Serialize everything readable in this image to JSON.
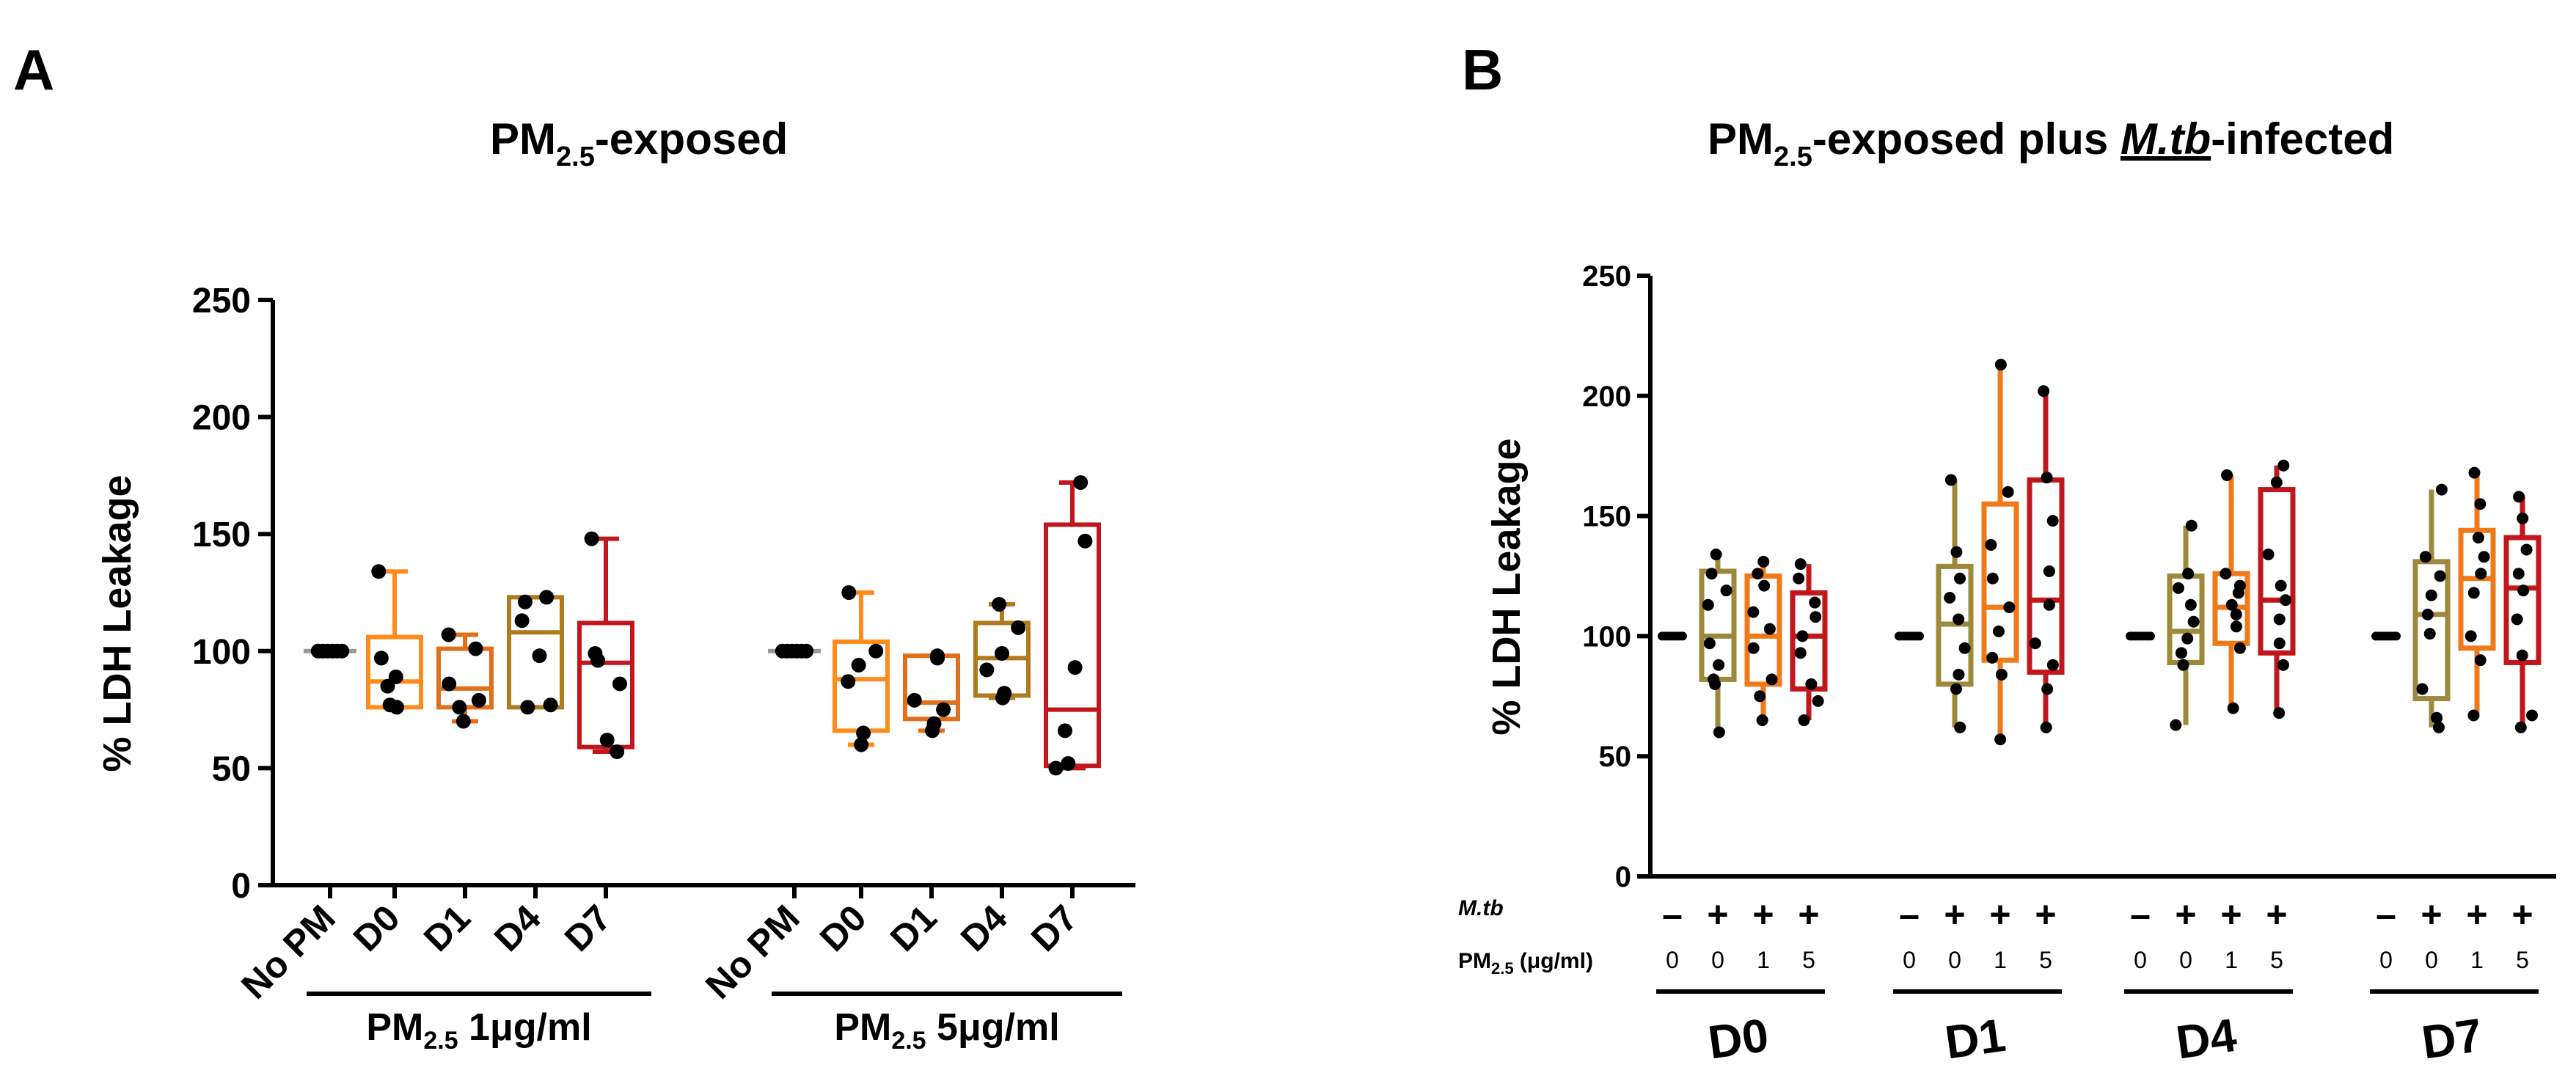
{
  "colors": {
    "nopm": "#999999",
    "d0": "#FF8C1A",
    "d1": "#E0701C",
    "d4": "#B07A1E",
    "d7": "#C2161C",
    "olive": "#9C8A3A",
    "orange": "#F07A1A",
    "red": "#C2161C",
    "black": "#000000"
  },
  "chart_data": [
    {
      "panel": "A",
      "type": "box",
      "title_main": "PM",
      "title_sub": "2.5",
      "title_rest": "-exposed",
      "ylabel": "% LDH Leakage",
      "ylim": [
        0,
        250
      ],
      "yticks": [
        "0",
        "50",
        "100",
        "150",
        "200",
        "250"
      ],
      "groups": [
        {
          "label_main": "PM",
          "label_sub": "2.5",
          "label_rest": " 1μg/ml"
        },
        {
          "label_main": "PM",
          "label_sub": "2.5",
          "label_rest": " 5μg/ml"
        }
      ],
      "categories": [
        "No PM",
        "D0",
        "D1",
        "D4",
        "D7",
        "No PM",
        "D0",
        "D1",
        "D4",
        "D7"
      ],
      "series": [
        {
          "name": "No PM",
          "group": 0,
          "color": "nopm",
          "min": 100,
          "q1": 100,
          "median": 100,
          "q3": 100,
          "max": 100,
          "points": [
            100,
            100,
            100,
            100,
            100,
            100
          ]
        },
        {
          "name": "D0",
          "group": 0,
          "color": "d0",
          "min": 76,
          "q1": 76,
          "median": 87,
          "q3": 106,
          "max": 134,
          "points": [
            76,
            77,
            85,
            89,
            97,
            134
          ]
        },
        {
          "name": "D1",
          "group": 0,
          "color": "d1",
          "min": 70,
          "q1": 76,
          "median": 84,
          "q3": 101,
          "max": 107,
          "points": [
            70,
            76,
            79,
            86,
            101,
            107
          ]
        },
        {
          "name": "D4",
          "group": 0,
          "color": "d4",
          "min": 76,
          "q1": 76,
          "median": 108,
          "q3": 123,
          "max": 123,
          "points": [
            76,
            77,
            98,
            113,
            121,
            123
          ]
        },
        {
          "name": "D7",
          "group": 0,
          "color": "d7",
          "min": 57,
          "q1": 59,
          "median": 95,
          "q3": 112,
          "max": 148,
          "points": [
            57,
            62,
            86,
            96,
            99,
            148
          ]
        },
        {
          "name": "No PM",
          "group": 1,
          "color": "nopm",
          "min": 100,
          "q1": 100,
          "median": 100,
          "q3": 100,
          "max": 100,
          "points": [
            100,
            100,
            100,
            100,
            100,
            100
          ]
        },
        {
          "name": "D0",
          "group": 1,
          "color": "d0",
          "min": 60,
          "q1": 66,
          "median": 88,
          "q3": 104,
          "max": 125,
          "points": [
            60,
            65,
            87,
            94,
            100,
            125
          ]
        },
        {
          "name": "D1",
          "group": 1,
          "color": "d1",
          "min": 66,
          "q1": 71,
          "median": 78,
          "q3": 98,
          "max": 98,
          "points": [
            66,
            69,
            75,
            79,
            97,
            98
          ]
        },
        {
          "name": "D4",
          "group": 1,
          "color": "d4",
          "min": 80,
          "q1": 81,
          "median": 97,
          "q3": 112,
          "max": 120,
          "points": [
            80,
            82,
            92,
            99,
            110,
            120
          ]
        },
        {
          "name": "D7",
          "group": 1,
          "color": "d7",
          "min": 50,
          "q1": 51,
          "median": 75,
          "q3": 154,
          "max": 172,
          "points": [
            50,
            52,
            66,
            93,
            147,
            172
          ]
        }
      ]
    },
    {
      "panel": "B",
      "type": "box",
      "title_main": "PM",
      "title_sub": "2.5",
      "title_mid": "-exposed plus ",
      "title_italic": "M.tb",
      "title_rest": "-infected",
      "ylabel": "% LDH Leakage",
      "ylim": [
        0,
        250
      ],
      "yticks": [
        "0",
        "50",
        "100",
        "150",
        "200",
        "250"
      ],
      "row_mtb": "M.tb",
      "row_pm_main": "PM",
      "row_pm_sub": "2.5",
      "row_pm_rest": " (μg/ml)",
      "days": [
        "D0",
        "D1",
        "D4",
        "D7"
      ],
      "mtb_signs": [
        "–",
        "+",
        "+",
        "+"
      ],
      "pm_values": [
        "0",
        "0",
        "1",
        "5"
      ],
      "series": [
        {
          "day": "D0",
          "color": "black",
          "min": 100,
          "q1": 100,
          "median": 100,
          "q3": 100,
          "max": 100,
          "points": [
            100,
            100,
            100,
            100,
            100,
            100,
            100,
            100,
            100
          ],
          "control": true
        },
        {
          "day": "D0",
          "color": "olive",
          "min": 60,
          "q1": 82,
          "median": 100,
          "q3": 127,
          "max": 134,
          "points": [
            60,
            80,
            82,
            88,
            97,
            113,
            119,
            126,
            134
          ]
        },
        {
          "day": "D0",
          "color": "orange",
          "min": 65,
          "q1": 80,
          "median": 100,
          "q3": 125,
          "max": 131,
          "points": [
            65,
            75,
            82,
            95,
            103,
            110,
            121,
            126,
            131
          ]
        },
        {
          "day": "D0",
          "color": "red",
          "min": 65,
          "q1": 78,
          "median": 100,
          "q3": 118,
          "max": 130,
          "points": [
            65,
            73,
            80,
            93,
            100,
            108,
            114,
            124,
            130
          ]
        },
        {
          "day": "D1",
          "color": "black",
          "min": 100,
          "q1": 100,
          "median": 100,
          "q3": 100,
          "max": 100,
          "points": [
            100,
            100,
            100,
            100,
            100,
            100,
            100,
            100,
            100
          ],
          "control": true
        },
        {
          "day": "D1",
          "color": "olive",
          "min": 62,
          "q1": 80,
          "median": 105,
          "q3": 129,
          "max": 165,
          "points": [
            62,
            78,
            84,
            95,
            107,
            116,
            124,
            135,
            165
          ]
        },
        {
          "day": "D1",
          "color": "orange",
          "min": 57,
          "q1": 90,
          "median": 112,
          "q3": 155,
          "max": 213,
          "points": [
            57,
            84,
            91,
            102,
            112,
            124,
            138,
            160,
            213
          ]
        },
        {
          "day": "D1",
          "color": "red",
          "min": 62,
          "q1": 85,
          "median": 115,
          "q3": 165,
          "max": 202,
          "points": [
            62,
            78,
            88,
            97,
            113,
            127,
            148,
            166,
            202
          ]
        },
        {
          "day": "D4",
          "color": "black",
          "min": 100,
          "q1": 100,
          "median": 100,
          "q3": 100,
          "max": 100,
          "points": [
            100,
            100,
            100,
            100,
            100,
            100,
            100,
            100,
            100
          ],
          "control": true
        },
        {
          "day": "D4",
          "color": "olive",
          "min": 63,
          "q1": 89,
          "median": 102,
          "q3": 125,
          "max": 146,
          "points": [
            63,
            88,
            93,
            99,
            106,
            113,
            120,
            126,
            146
          ]
        },
        {
          "day": "D4",
          "color": "orange",
          "min": 70,
          "q1": 97,
          "median": 112,
          "q3": 126,
          "max": 167,
          "points": [
            70,
            95,
            104,
            109,
            113,
            118,
            121,
            126,
            167
          ]
        },
        {
          "day": "D4",
          "color": "red",
          "min": 68,
          "q1": 93,
          "median": 115,
          "q3": 161,
          "max": 171,
          "points": [
            68,
            88,
            97,
            107,
            115,
            121,
            134,
            164,
            171
          ]
        },
        {
          "day": "D7",
          "color": "black",
          "min": 100,
          "q1": 100,
          "median": 100,
          "q3": 100,
          "max": 100,
          "points": [
            100,
            100,
            100,
            100,
            100,
            100,
            100,
            100,
            100
          ],
          "control": true
        },
        {
          "day": "D7",
          "color": "olive",
          "min": 62,
          "q1": 74,
          "median": 109,
          "q3": 131,
          "max": 161,
          "points": [
            62,
            66,
            78,
            101,
            109,
            117,
            125,
            133,
            161
          ]
        },
        {
          "day": "D7",
          "color": "orange",
          "min": 67,
          "q1": 95,
          "median": 124,
          "q3": 144,
          "max": 168,
          "points": [
            67,
            90,
            100,
            118,
            126,
            133,
            141,
            155,
            168
          ]
        },
        {
          "day": "D7",
          "color": "red",
          "min": 62,
          "q1": 89,
          "median": 120,
          "q3": 141,
          "max": 158,
          "points": [
            62,
            67,
            92,
            107,
            119,
            126,
            136,
            149,
            158
          ]
        }
      ]
    }
  ]
}
